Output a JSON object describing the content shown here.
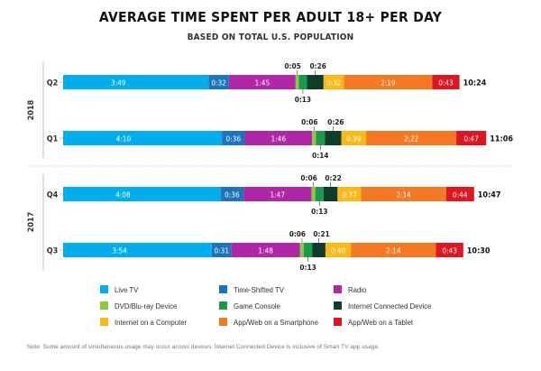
{
  "chart_data": {
    "type": "stacked-bar-horizontal",
    "title": "AVERAGE TIME SPENT PER ADULT 18+ PER DAY",
    "subtitle": "BASED ON TOTAL U.S. POPULATION",
    "unit": "hours:minutes",
    "colors": {
      "Live TV": "#00aeef",
      "Time-Shifted TV": "#1c75bc",
      "Radio": "#b026a6",
      "DVD/Blu-ray Device": "#8dc63f",
      "Game Console": "#1b9a4b",
      "Internet Connected Device": "#0f3d27",
      "Internet on a Computer": "#fdb813",
      "App/Web on a Smartphone": "#f47920",
      "App/Web on a Tablet": "#e0151f"
    },
    "series_order": [
      "Live TV",
      "Time-Shifted TV",
      "Radio",
      "DVD/Blu-ray Device",
      "Game Console",
      "Internet Connected Device",
      "Internet on a Computer",
      "App/Web on a Smartphone",
      "App/Web on a Tablet"
    ],
    "groups": [
      {
        "year": "2018",
        "quarters": [
          {
            "quarter": "Q2",
            "total": "10:24",
            "values": [
              229,
              32,
              105,
              5,
              13,
              26,
              32,
              139,
              43
            ],
            "labels": [
              "3:49",
              "0:32",
              "1:45",
              "0:05",
              "0:13",
              "0:26",
              "0:32",
              "2:19",
              "0:43"
            ]
          },
          {
            "quarter": "Q1",
            "total": "11:06",
            "values": [
              250,
              36,
              106,
              6,
              14,
              26,
              39,
              142,
              47
            ],
            "labels": [
              "4:10",
              "0:36",
              "1:46",
              "0:06",
              "0:14",
              "0:26",
              "0:39",
              "2:22",
              "0:47"
            ]
          }
        ]
      },
      {
        "year": "2017",
        "quarters": [
          {
            "quarter": "Q4",
            "total": "10:47",
            "values": [
              248,
              36,
              107,
              6,
              13,
              22,
              37,
              134,
              44
            ],
            "labels": [
              "4:08",
              "0:36",
              "1:47",
              "0:06",
              "0:13",
              "0:22",
              "0:37",
              "2:14",
              "0:44"
            ]
          },
          {
            "quarter": "Q3",
            "total": "10:30",
            "values": [
              234,
              31,
              108,
              6,
              13,
              21,
              40,
              134,
              43
            ],
            "labels": [
              "3:54",
              "0:31",
              "1:48",
              "0:06",
              "0:13",
              "0:21",
              "0:40",
              "2:14",
              "0:43"
            ]
          }
        ]
      }
    ]
  },
  "legend": [
    "Live TV",
    "Time-Shifted TV",
    "Radio",
    "DVD/Blu-ray Device",
    "Game Console",
    "Internet Connected Device",
    "Internet on a Computer",
    "App/Web on a Smartphone",
    "App/Web on a Tablet"
  ],
  "footnote": "Note: Some amount of simultaneous usage may occur across devices. Internet Connected Device is inclusive of Smart TV app usage."
}
